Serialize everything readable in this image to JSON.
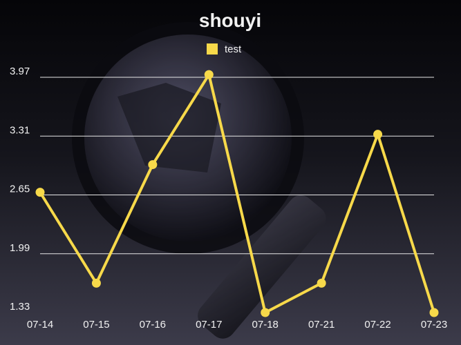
{
  "colors": {
    "series": "#f7d94a",
    "grid": "#e8e8e8",
    "text": "#f2f2f2"
  },
  "background_icon": "magnifying-glass-icon",
  "chart_data": {
    "type": "line",
    "title": "shouyi",
    "categories": [
      "07-14",
      "07-15",
      "07-16",
      "07-17",
      "07-18",
      "07-21",
      "07-22",
      "07-23"
    ],
    "series": [
      {
        "name": "test",
        "values": [
          2.68,
          1.66,
          2.99,
          4.0,
          1.33,
          1.66,
          3.33,
          1.33
        ]
      }
    ],
    "yticks": [
      "1.33",
      "1.99",
      "2.65",
      "3.31",
      "3.97"
    ],
    "ylim": [
      1.33,
      3.97
    ],
    "grid": true,
    "legend": "top-center"
  }
}
